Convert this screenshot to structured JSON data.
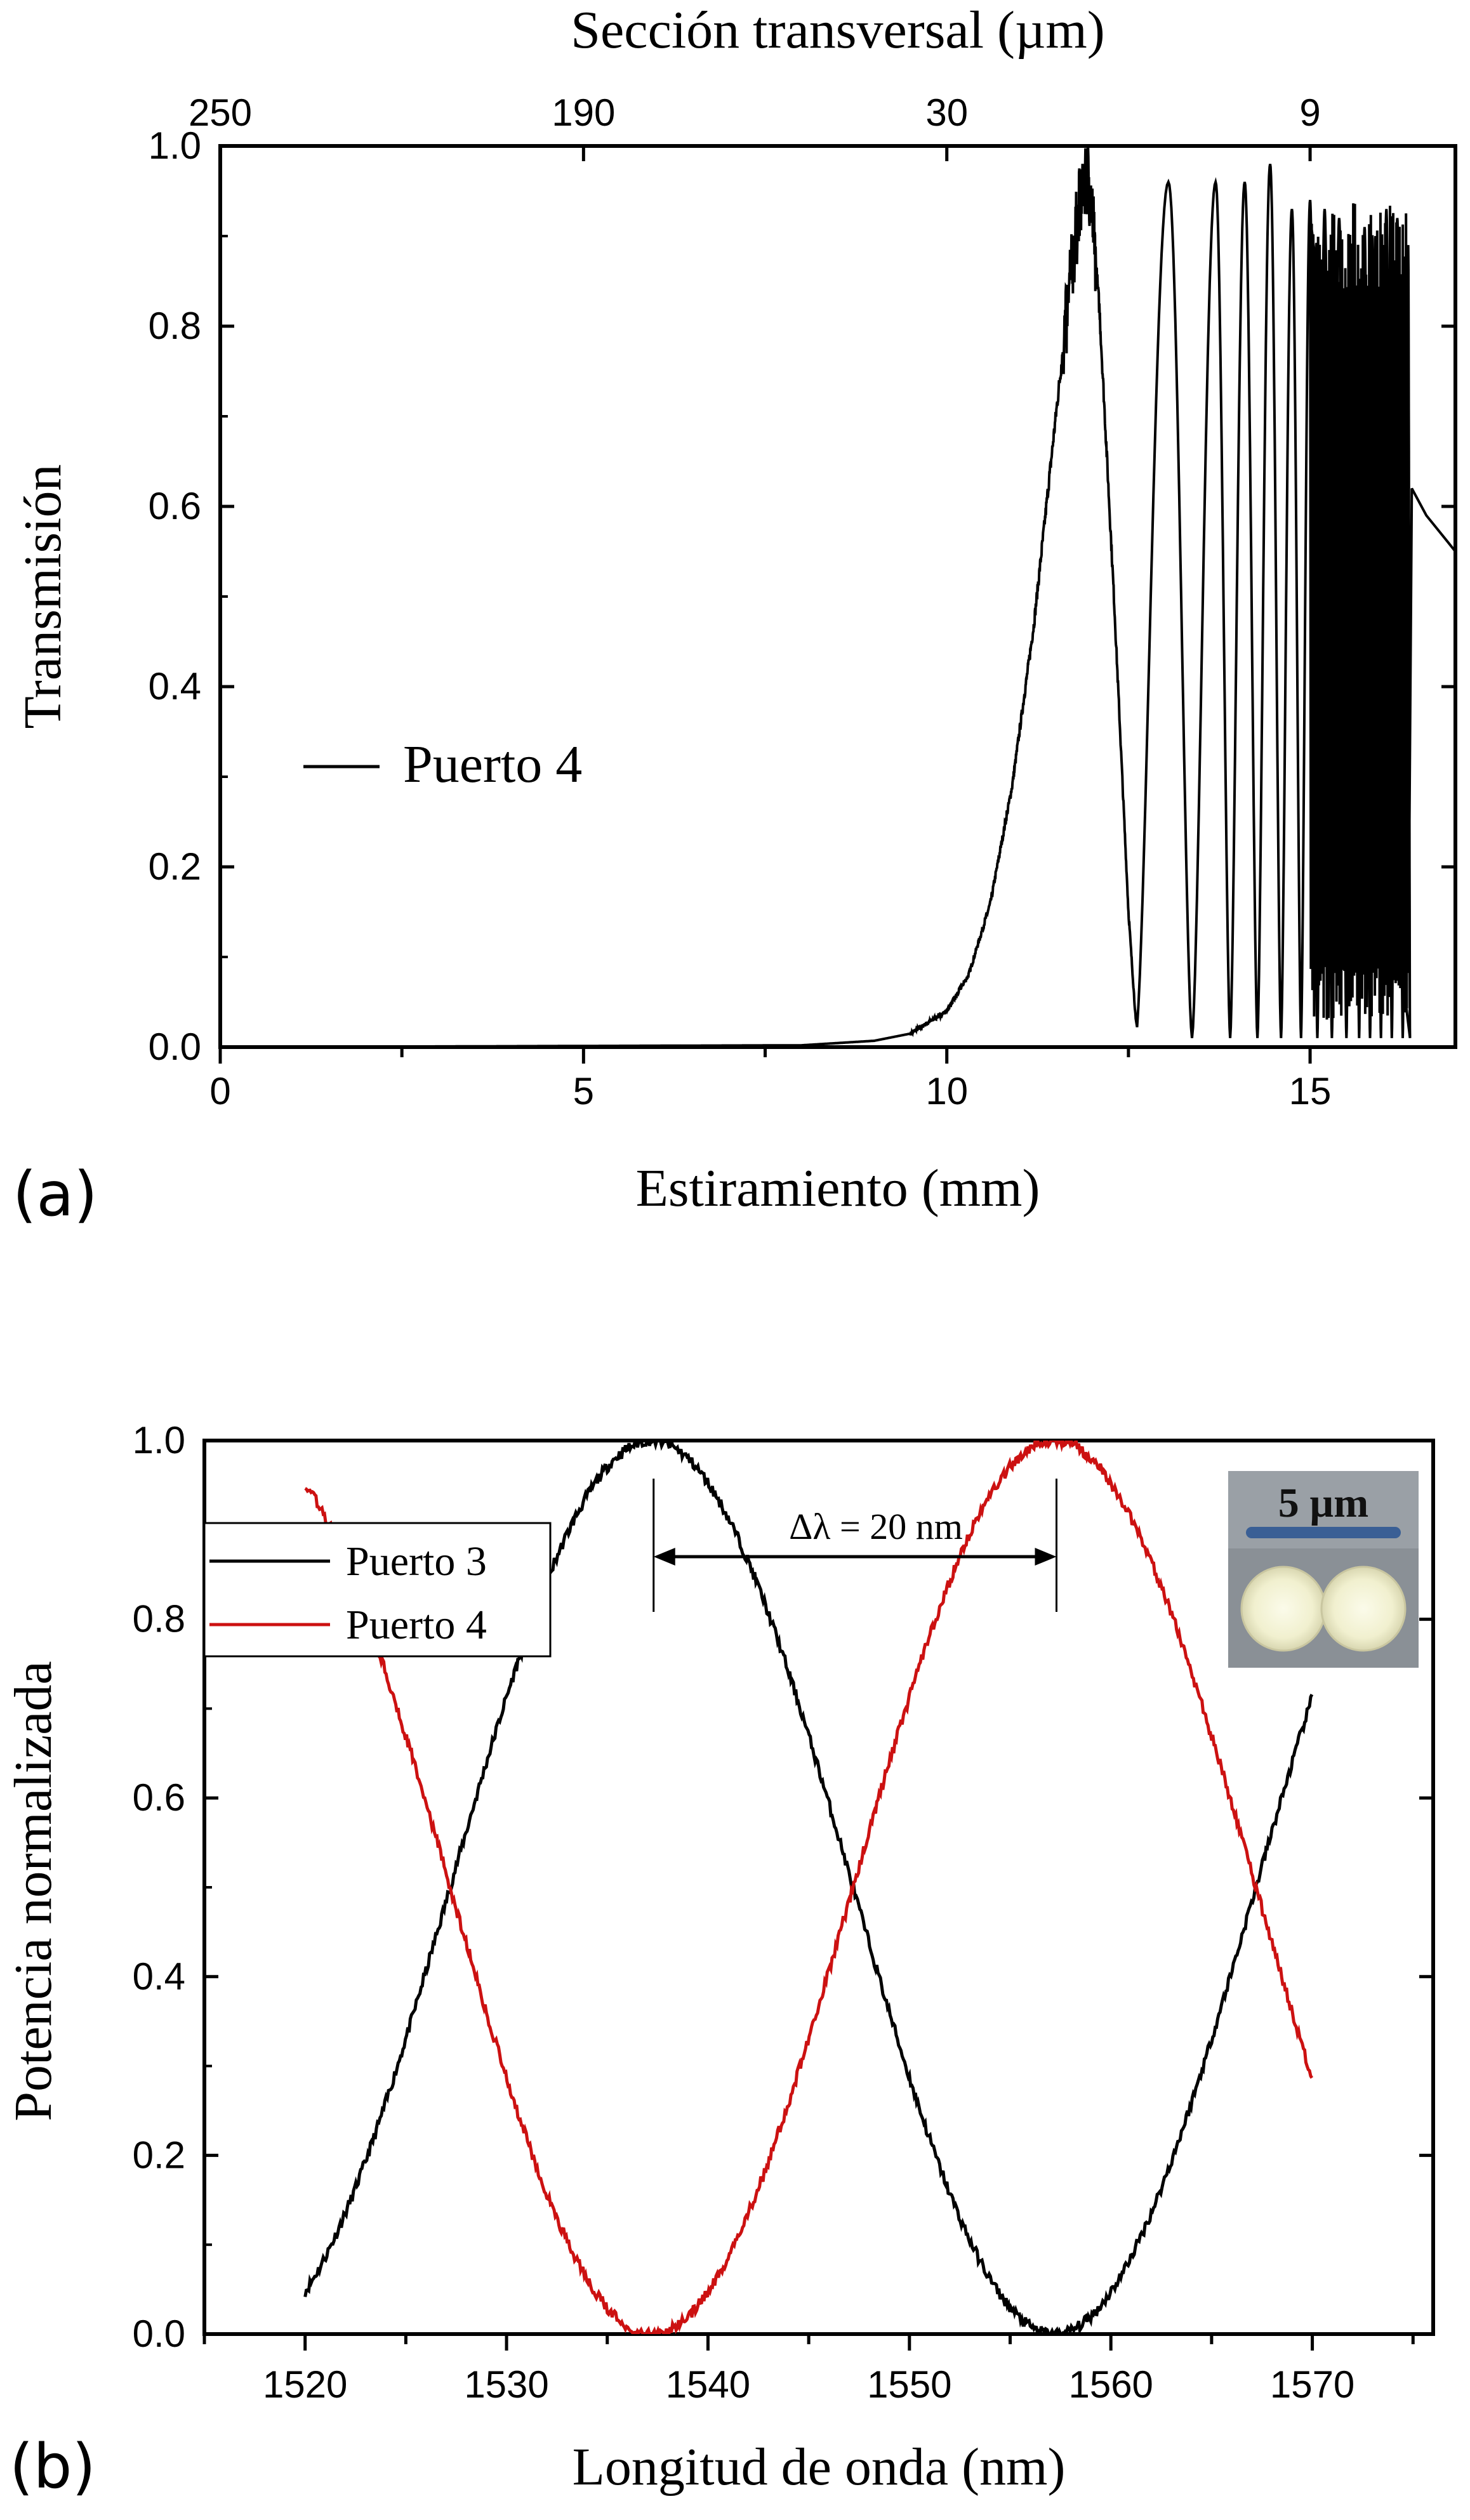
{
  "colors": {
    "series_black": "#000000",
    "series_red": "#cc1111",
    "inset_bg": "#9aa0a6",
    "scale_bar": "#3a5f95"
  },
  "chart_data": [
    {
      "id": "a",
      "type": "line",
      "panel_label": "(a)",
      "xlabel": "Estiramiento (mm)",
      "ylabel": "Transmisión",
      "xlim": [
        0,
        17
      ],
      "ylim": [
        0,
        1.0
      ],
      "xticks": [
        0,
        5,
        10,
        15
      ],
      "xticklabels": [
        "0",
        "5",
        "10",
        "15"
      ],
      "yticks": [
        0.0,
        0.2,
        0.4,
        0.6,
        0.8,
        1.0
      ],
      "yticklabels": [
        "0.0",
        "0.2",
        "0.4",
        "0.6",
        "0.8",
        "1.0"
      ],
      "top_axis": {
        "label": "Sección transversal (µm)",
        "ticks": [
          0,
          5,
          10,
          15
        ],
        "ticklabels": [
          "250",
          "190",
          "30",
          "9"
        ]
      },
      "legend": {
        "position": "center-left",
        "entries": [
          {
            "name": "Puerto 4",
            "color": "#000000"
          }
        ]
      },
      "series": [
        {
          "name": "Puerto 4",
          "color": "#000000",
          "envelope_x": [
            0,
            8.0,
            9.0,
            9.5,
            10.0,
            10.3,
            10.6,
            10.9,
            11.2,
            11.5,
            11.7,
            11.85,
            11.95,
            12.1,
            12.3,
            12.5,
            12.6
          ],
          "envelope_y": [
            0.0,
            0.002,
            0.007,
            0.015,
            0.04,
            0.08,
            0.16,
            0.29,
            0.47,
            0.7,
            0.85,
            0.95,
            0.97,
            0.82,
            0.5,
            0.15,
            0.03
          ],
          "oscillation_peaks_x": [
            13.05,
            13.7,
            14.1,
            14.45,
            14.75,
            15.0,
            15.2,
            15.4,
            15.6,
            15.75,
            15.9,
            16.05,
            16.2,
            16.35
          ],
          "oscillation_peaks_y": [
            0.96,
            0.96,
            0.96,
            0.98,
            0.93,
            0.94,
            0.93,
            0.92,
            0.9,
            0.91,
            0.9,
            0.93,
            0.92,
            0.89
          ],
          "oscillation_min_y": 0.01,
          "end_x": [
            16.4,
            16.6,
            16.9,
            17.0
          ],
          "end_y": [
            0.62,
            0.59,
            0.56,
            0.55
          ]
        }
      ]
    },
    {
      "id": "b",
      "type": "line",
      "panel_label": "(b)",
      "xlabel": "Longitud de onda (nm)",
      "ylabel": "Potencia normalizada",
      "xlim": [
        1515,
        1576
      ],
      "ylim": [
        0,
        1.0
      ],
      "xticks": [
        1520,
        1530,
        1540,
        1550,
        1560,
        1570
      ],
      "xticklabels": [
        "1520",
        "1530",
        "1540",
        "1550",
        "1560",
        "1570"
      ],
      "yticks": [
        0.0,
        0.2,
        0.4,
        0.6,
        0.8,
        1.0
      ],
      "yticklabels": [
        "0.0",
        "0.2",
        "0.4",
        "0.6",
        "0.8",
        "1.0"
      ],
      "legend": {
        "position": "top-left",
        "entries": [
          {
            "name": "Puerto 3",
            "color": "#000000"
          },
          {
            "name": "Puerto 4",
            "color": "#cc1111"
          }
        ]
      },
      "annotation": {
        "text": "Δλ = 20 nm",
        "x_start": 1537.3,
        "x_end": 1557.3,
        "y": 0.87
      },
      "inset": {
        "label": "5 µm"
      },
      "series": [
        {
          "name": "Puerto 3",
          "color": "#000000",
          "x_start": 1520,
          "x_end": 1570,
          "peak_x": 1537.2,
          "period": 40,
          "amplitude": 0.5,
          "offset": 0.5
        },
        {
          "name": "Puerto 4",
          "color": "#cc1111",
          "x_start": 1520,
          "x_end": 1570,
          "peak_x": 1557.2,
          "period": 40,
          "amplitude": 0.5,
          "offset": 0.5
        }
      ]
    }
  ]
}
